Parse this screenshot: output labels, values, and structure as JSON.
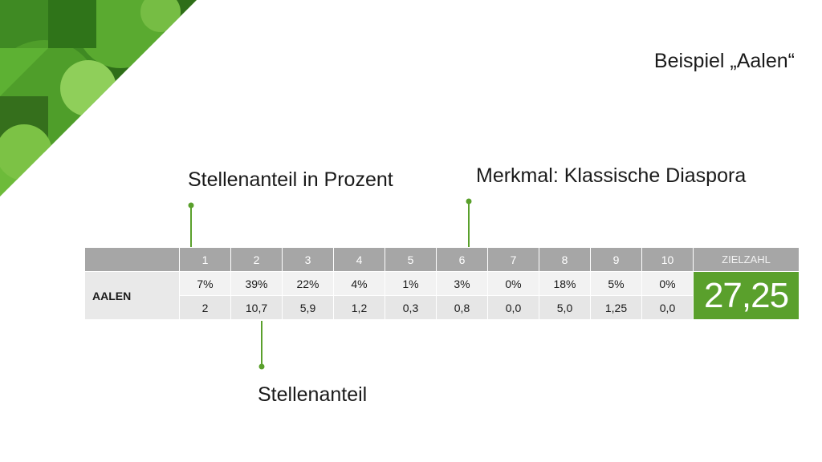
{
  "title": "Beispiel „Aalen“",
  "labels": {
    "percent": "Stellenanteil in Prozent",
    "diaspora": "Merkmal: Klassische Diaspora",
    "share": "Stellenanteil"
  },
  "table": {
    "headers": [
      "1",
      "2",
      "3",
      "4",
      "5",
      "6",
      "7",
      "8",
      "9",
      "10"
    ],
    "target_header": "ZIELZAHL",
    "city": "AALEN",
    "percent_row": [
      "7%",
      "39%",
      "22%",
      "4%",
      "1%",
      "3%",
      "0%",
      "18%",
      "5%",
      "0%"
    ],
    "share_row": [
      "2",
      "10,7",
      "5,9",
      "1,2",
      "0,3",
      "0,8",
      "0,0",
      "5,0",
      "1,25",
      "0,0"
    ],
    "total": "27,25"
  },
  "colors": {
    "accent_green": "#5aa02c",
    "header_gray": "#a6a6a6",
    "row_light": "#f2f2f2",
    "row_alt": "#e6e6e6"
  }
}
